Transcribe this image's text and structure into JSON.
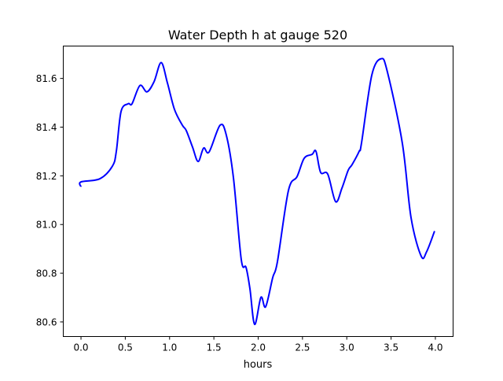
{
  "chart_data": {
    "type": "line",
    "title": "Water Depth h at gauge 520",
    "xlabel": "hours",
    "ylabel": "",
    "xlim": [
      -0.2,
      4.2
    ],
    "ylim": [
      80.54,
      81.733
    ],
    "xticks": [
      0.0,
      0.5,
      1.0,
      1.5,
      2.0,
      2.5,
      3.0,
      3.5,
      4.0
    ],
    "xtick_labels": [
      "0.0",
      "0.5",
      "1.0",
      "1.5",
      "2.0",
      "2.5",
      "3.0",
      "3.5",
      "4.0"
    ],
    "yticks": [
      80.6,
      80.8,
      81.0,
      81.2,
      81.4,
      81.6
    ],
    "ytick_labels": [
      "80.6",
      "80.8",
      "81.0",
      "81.2",
      "81.4",
      "81.6"
    ],
    "grid": false,
    "series": [
      {
        "name": "h",
        "color": "#0000ff",
        "x": [
          0.0,
          0.0,
          0.213,
          0.355,
          0.399,
          0.452,
          0.532,
          0.576,
          0.665,
          0.745,
          0.825,
          0.905,
          0.976,
          1.055,
          1.144,
          1.188,
          1.259,
          1.322,
          1.384,
          1.446,
          1.57,
          1.641,
          1.721,
          1.809,
          1.863,
          1.907,
          1.96,
          2.031,
          2.084,
          2.164,
          2.217,
          2.341,
          2.439,
          2.519,
          2.608,
          2.652,
          2.705,
          2.785,
          2.874,
          2.945,
          3.016,
          3.06,
          3.14,
          3.166,
          3.282,
          3.388,
          3.459,
          3.627,
          3.725,
          3.84,
          3.902,
          3.991
        ],
        "y": [
          81.155,
          81.175,
          81.188,
          81.24,
          81.301,
          81.464,
          81.496,
          81.496,
          81.571,
          81.545,
          81.587,
          81.665,
          81.581,
          81.473,
          81.408,
          81.386,
          81.318,
          81.259,
          81.314,
          81.298,
          81.408,
          81.366,
          81.191,
          80.856,
          80.824,
          80.736,
          80.59,
          80.701,
          80.662,
          80.782,
          80.847,
          81.139,
          81.197,
          81.272,
          81.288,
          81.301,
          81.214,
          81.207,
          81.094,
          81.149,
          81.223,
          81.246,
          81.301,
          81.334,
          81.613,
          81.681,
          81.626,
          81.334,
          81.029,
          80.87,
          80.889,
          80.973
        ]
      }
    ]
  }
}
